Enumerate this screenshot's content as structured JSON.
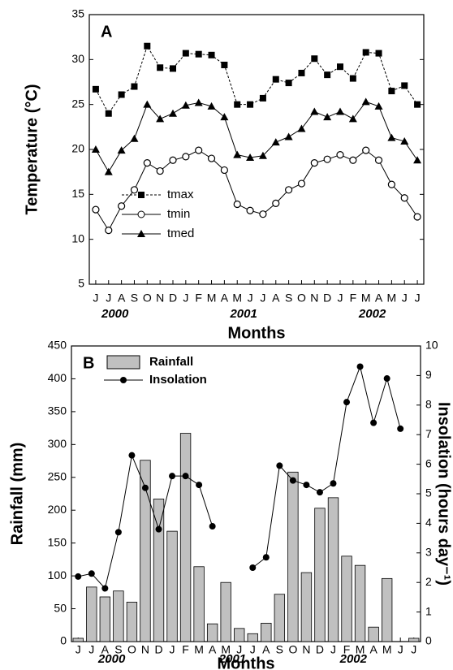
{
  "chart_data": [
    {
      "type": "line",
      "label": "A",
      "xlabel": "Months",
      "ylabel": "Temperature (°C)",
      "categories": [
        "J",
        "J",
        "A",
        "S",
        "O",
        "N",
        "D",
        "J",
        "F",
        "M",
        "A",
        "M",
        "J",
        "J",
        "A",
        "S",
        "O",
        "N",
        "D",
        "J",
        "F",
        "M",
        "A",
        "M",
        "J",
        "J"
      ],
      "year_labels": [
        "2000",
        "2001",
        "2002"
      ],
      "ylim": [
        5,
        35
      ],
      "yticks": [
        5,
        10,
        15,
        20,
        25,
        30,
        35
      ],
      "legend": "lower left",
      "series": [
        {
          "name": "tmax",
          "color": "#000000",
          "marker": "square",
          "dashed": true,
          "values": [
            26.7,
            24,
            26.1,
            27,
            31.5,
            29.1,
            29,
            30.7,
            30.6,
            30.5,
            29.4,
            25,
            25,
            25.7,
            27.8,
            27.4,
            28.5,
            30.1,
            28.3,
            29.2,
            27.9,
            30.8,
            30.7,
            26.5,
            27.1,
            25
          ]
        },
        {
          "name": "tmin",
          "color": "#000000",
          "marker": "circle-open",
          "dashed": false,
          "values": [
            13.3,
            11,
            13.7,
            15.5,
            18.5,
            17.6,
            18.8,
            19.2,
            19.9,
            19,
            17.7,
            13.9,
            13.2,
            12.8,
            14,
            15.5,
            16.2,
            18.5,
            18.9,
            19.4,
            18.8,
            19.9,
            18.8,
            16.1,
            14.6,
            12.5
          ]
        },
        {
          "name": "tmed",
          "color": "#000000",
          "marker": "triangle",
          "dashed": false,
          "values": [
            20,
            17.5,
            19.9,
            21.2,
            25,
            23.4,
            24,
            24.9,
            25.2,
            24.8,
            23.6,
            19.4,
            19.1,
            19.3,
            20.8,
            21.4,
            22.3,
            24.2,
            23.6,
            24.2,
            23.4,
            25.3,
            24.8,
            21.3,
            20.9,
            18.8
          ]
        }
      ]
    },
    {
      "type": "combo",
      "label": "B",
      "xlabel": "Months",
      "ylabel": "Rainfall (mm)",
      "y2label": "Insolation (hours day⁻¹)",
      "categories": [
        "J",
        "J",
        "A",
        "S",
        "O",
        "N",
        "D",
        "J",
        "F",
        "M",
        "A",
        "M",
        "J",
        "J",
        "A",
        "S",
        "O",
        "N",
        "D",
        "J",
        "F",
        "M",
        "A",
        "M",
        "J",
        "J"
      ],
      "year_labels": [
        "2000",
        "2001",
        "2002"
      ],
      "ylim": [
        0,
        450
      ],
      "yticks": [
        0,
        50,
        100,
        150,
        200,
        250,
        300,
        350,
        400,
        450
      ],
      "y2lim": [
        0,
        10
      ],
      "y2ticks": [
        0,
        1,
        2,
        3,
        4,
        5,
        6,
        7,
        8,
        9,
        10
      ],
      "legend": "upper left",
      "series": [
        {
          "name": "Rainfall",
          "kind": "bar",
          "color": "#c0c0c0",
          "values": [
            5,
            83,
            68,
            77,
            60,
            276,
            217,
            168,
            317,
            114,
            27,
            90,
            20,
            12,
            28,
            72,
            258,
            105,
            203,
            219,
            130,
            116,
            22,
            96,
            null,
            5
          ]
        },
        {
          "name": "Insolation",
          "kind": "line",
          "axis": "y2",
          "color": "#000000",
          "marker": "circle",
          "values": [
            2.2,
            2.3,
            1.8,
            3.7,
            6.3,
            5.2,
            3.8,
            5.6,
            5.6,
            5.3,
            3.9,
            null,
            null,
            2.5,
            2.85,
            5.95,
            5.45,
            5.3,
            5.05,
            5.35,
            8.1,
            9.3,
            7.4,
            8.9,
            7.2,
            null
          ]
        }
      ]
    }
  ]
}
